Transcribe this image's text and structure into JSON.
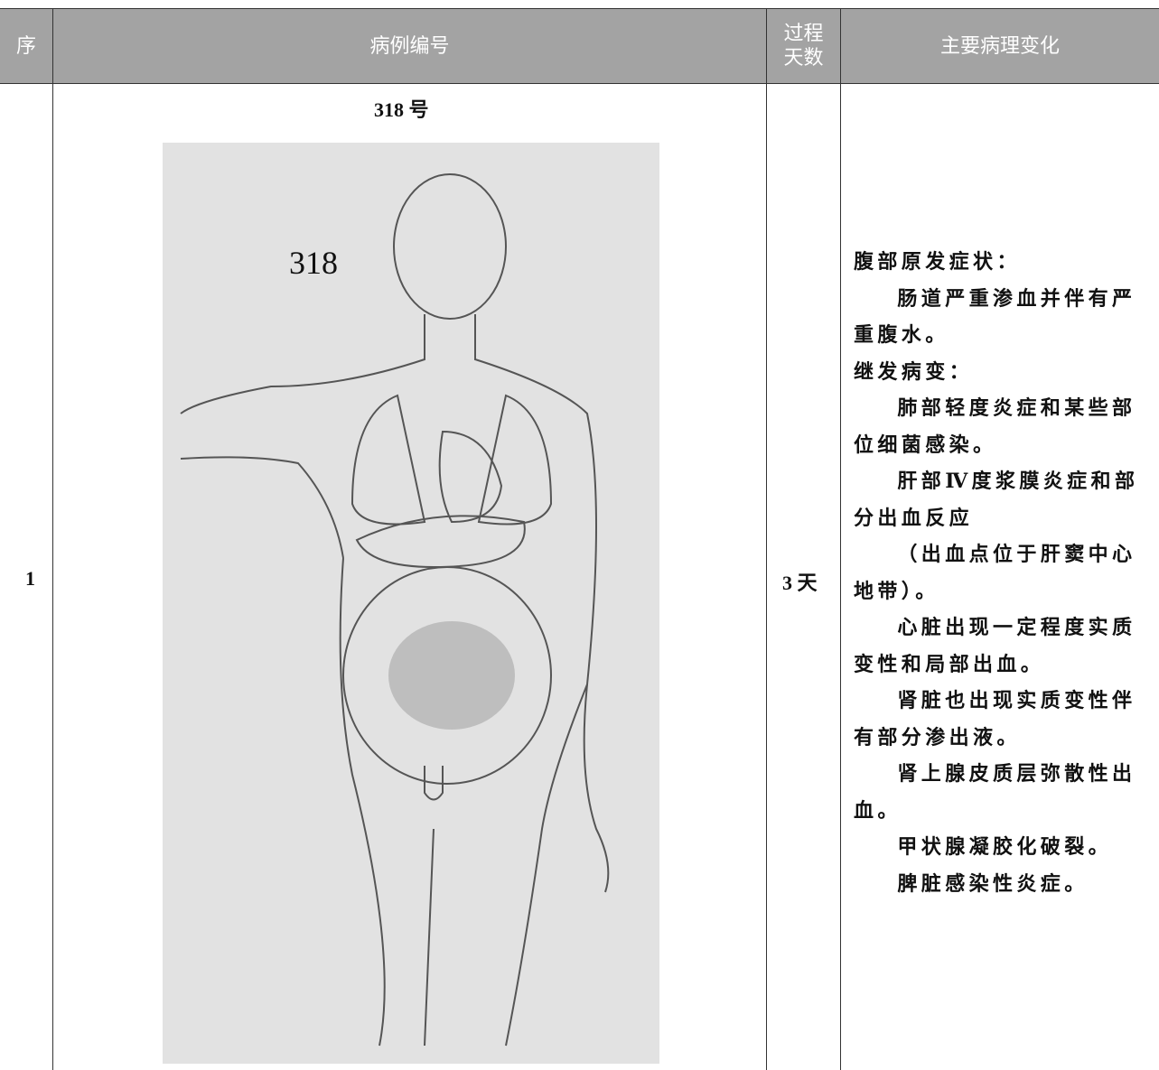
{
  "table": {
    "header": [
      "序",
      "病例编号",
      "过程\n天数",
      "主要病理变化"
    ],
    "rows": [
      {
        "index": "1",
        "case": {
          "caption": "318 号",
          "figure_label": "318"
        },
        "days": "3 天",
        "changes": [
          {
            "heading": "腹部原发症状：",
            "items": [
              "肠道严重渗血并伴有严重腹水。"
            ]
          },
          {
            "heading": "继发病变：",
            "items": [
              "肺部轻度炎症和某些部位细菌感染。",
              "肝部Ⅳ度浆膜炎症和部分出血反应",
              "（出血点位于肝窦中心地带）。",
              "心脏出现一定程度实质变性和局部出血。",
              "肾脏也出现实质变性伴有部分渗出液。",
              "肾上腺皮质层弥散性出血。",
              "甲状腺凝胶化破裂。",
              "脾脏感染性炎症。"
            ]
          }
        ]
      }
    ]
  }
}
